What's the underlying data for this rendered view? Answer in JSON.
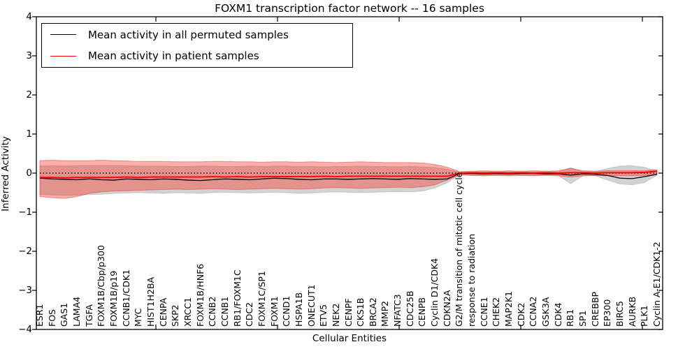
{
  "figure": {
    "title": "FOXM1 transcription factor network -- 16 samples",
    "xlabel": "Cellular Entities",
    "ylabel": "Inferred Activity",
    "legend": [
      {
        "label": "Mean activity in all permuted samples",
        "color": "#000000"
      },
      {
        "label": "Mean activity in patient samples",
        "color": "#ff0000"
      }
    ]
  },
  "chart_data": {
    "type": "line",
    "title": "FOXM1 transcription factor network -- 16 samples",
    "xlabel": "Cellular Entities",
    "ylabel": "Inferred Activity",
    "ylim": [
      -4,
      4
    ],
    "yticks": [
      4,
      3,
      2,
      1,
      0,
      -1,
      -2,
      -3,
      -4
    ],
    "grid": false,
    "legend_position": "upper left",
    "zero_line": 0,
    "background": "#ffffff",
    "categories": [
      "ESR1",
      "FOS",
      "GAS1",
      "LAMA4",
      "TGFA",
      "FOXM1B/Cbp/p300",
      "FOXM1B/p19",
      "CCNB1/CDK1",
      "MYC",
      "HIST1H2BA",
      "CENPA",
      "SKP2",
      "XRCC1",
      "FOXM1B/HNF6",
      "CCNB2",
      "CCNB1",
      "RB1/FOXM1C",
      "CDC2",
      "FOXM1C/SP1",
      "FOXM1",
      "CCND1",
      "HSPA1B",
      "ONECUT1",
      "ETV5",
      "NEK2",
      "CENPF",
      "CKS1B",
      "BRCA2",
      "MMP2",
      "NFATC3",
      "CDC25B",
      "CENPB",
      "Cyclin D1/CDK4",
      "CDKN2A",
      "G2/M transition of mitotic cell cycle",
      "response to radiation",
      "CCNE1",
      "CHEK2",
      "MAP2K1",
      "CDK2",
      "CCNA2",
      "GSK3A",
      "CDK4",
      "RB1",
      "SP1",
      "CREBBP",
      "EP300",
      "BIRC5",
      "AURKB",
      "PLK1",
      "Cyclin A-E1/CDK1-2"
    ],
    "series": [
      {
        "name": "Mean activity in all permuted samples",
        "color": "#000000",
        "values": [
          -0.13,
          -0.15,
          -0.16,
          -0.17,
          -0.15,
          -0.17,
          -0.18,
          -0.15,
          -0.16,
          -0.17,
          -0.15,
          -0.16,
          -0.18,
          -0.19,
          -0.17,
          -0.15,
          -0.16,
          -0.17,
          -0.15,
          -0.13,
          -0.14,
          -0.16,
          -0.17,
          -0.15,
          -0.15,
          -0.16,
          -0.15,
          -0.14,
          -0.15,
          -0.16,
          -0.14,
          -0.15,
          -0.16,
          -0.15,
          -0.01,
          -0.01,
          -0.02,
          -0.01,
          -0.02,
          -0.01,
          -0.01,
          -0.02,
          -0.02,
          -0.05,
          -0.02,
          -0.03,
          -0.06,
          -0.13,
          -0.14,
          -0.09,
          -0.03
        ]
      },
      {
        "name": "Mean activity in patient samples",
        "color": "#ff0000",
        "values": [
          -0.11,
          -0.11,
          -0.12,
          -0.11,
          -0.11,
          -0.11,
          -0.11,
          -0.1,
          -0.11,
          -0.1,
          -0.1,
          -0.1,
          -0.1,
          -0.1,
          -0.09,
          -0.1,
          -0.09,
          -0.1,
          -0.09,
          -0.09,
          -0.09,
          -0.09,
          -0.09,
          -0.08,
          -0.09,
          -0.08,
          -0.08,
          -0.08,
          -0.08,
          -0.08,
          -0.08,
          -0.08,
          -0.08,
          -0.08,
          0.0,
          0.01,
          0.0,
          0.01,
          0.0,
          0.01,
          0.0,
          0.01,
          0.0,
          0.01,
          0.01,
          0.0,
          0.01,
          0.01,
          0.01,
          0.02,
          0.05
        ]
      }
    ],
    "bands": [
      {
        "name": "permuted samples range",
        "fill_color": "rgba(150,150,150,0.42)",
        "edge_color": "rgba(140,140,140,0.35)",
        "top": [
          0.18,
          0.19,
          0.18,
          0.19,
          0.19,
          0.2,
          0.19,
          0.19,
          0.18,
          0.18,
          0.18,
          0.17,
          0.17,
          0.18,
          0.18,
          0.17,
          0.17,
          0.18,
          0.17,
          0.18,
          0.18,
          0.17,
          0.17,
          0.16,
          0.17,
          0.17,
          0.18,
          0.17,
          0.17,
          0.16,
          0.17,
          0.16,
          0.14,
          0.1,
          0.02,
          0.03,
          0.04,
          0.03,
          0.04,
          0.03,
          0.04,
          0.03,
          0.04,
          0.14,
          0.04,
          0.04,
          0.12,
          0.18,
          0.19,
          0.15,
          0.05
        ],
        "bottom": [
          -0.55,
          -0.56,
          -0.57,
          -0.56,
          -0.55,
          -0.54,
          -0.52,
          -0.51,
          -0.5,
          -0.51,
          -0.52,
          -0.5,
          -0.51,
          -0.52,
          -0.5,
          -0.49,
          -0.5,
          -0.51,
          -0.5,
          -0.49,
          -0.5,
          -0.52,
          -0.51,
          -0.49,
          -0.48,
          -0.49,
          -0.5,
          -0.49,
          -0.48,
          -0.47,
          -0.48,
          -0.46,
          -0.38,
          -0.25,
          -0.04,
          -0.05,
          -0.06,
          -0.05,
          -0.06,
          -0.05,
          -0.06,
          -0.05,
          -0.06,
          -0.27,
          -0.07,
          -0.07,
          -0.18,
          -0.28,
          -0.3,
          -0.24,
          -0.05
        ]
      },
      {
        "name": "patient samples range",
        "fill_color": "rgba(255,30,20,0.36)",
        "edge_color": "rgba(225,45,35,0.45)",
        "top": [
          0.32,
          0.33,
          0.32,
          0.32,
          0.32,
          0.33,
          0.32,
          0.31,
          0.3,
          0.3,
          0.3,
          0.29,
          0.29,
          0.29,
          0.3,
          0.3,
          0.29,
          0.29,
          0.28,
          0.29,
          0.29,
          0.28,
          0.29,
          0.28,
          0.27,
          0.28,
          0.29,
          0.28,
          0.27,
          0.27,
          0.27,
          0.26,
          0.22,
          0.15,
          0.04,
          0.05,
          0.06,
          0.05,
          0.06,
          0.05,
          0.06,
          0.05,
          0.06,
          0.12,
          0.06,
          0.05,
          0.06,
          0.06,
          0.06,
          0.06,
          0.09
        ],
        "bottom": [
          -0.6,
          -0.63,
          -0.65,
          -0.6,
          -0.52,
          -0.48,
          -0.46,
          -0.45,
          -0.44,
          -0.43,
          -0.42,
          -0.41,
          -0.42,
          -0.41,
          -0.4,
          -0.41,
          -0.42,
          -0.41,
          -0.4,
          -0.39,
          -0.4,
          -0.41,
          -0.4,
          -0.38,
          -0.37,
          -0.38,
          -0.39,
          -0.38,
          -0.37,
          -0.36,
          -0.37,
          -0.35,
          -0.3,
          -0.18,
          -0.05,
          -0.06,
          -0.07,
          -0.06,
          -0.07,
          -0.06,
          -0.07,
          -0.06,
          -0.07,
          -0.1,
          -0.07,
          -0.06,
          -0.07,
          -0.07,
          -0.07,
          -0.06,
          -0.04
        ]
      }
    ]
  }
}
